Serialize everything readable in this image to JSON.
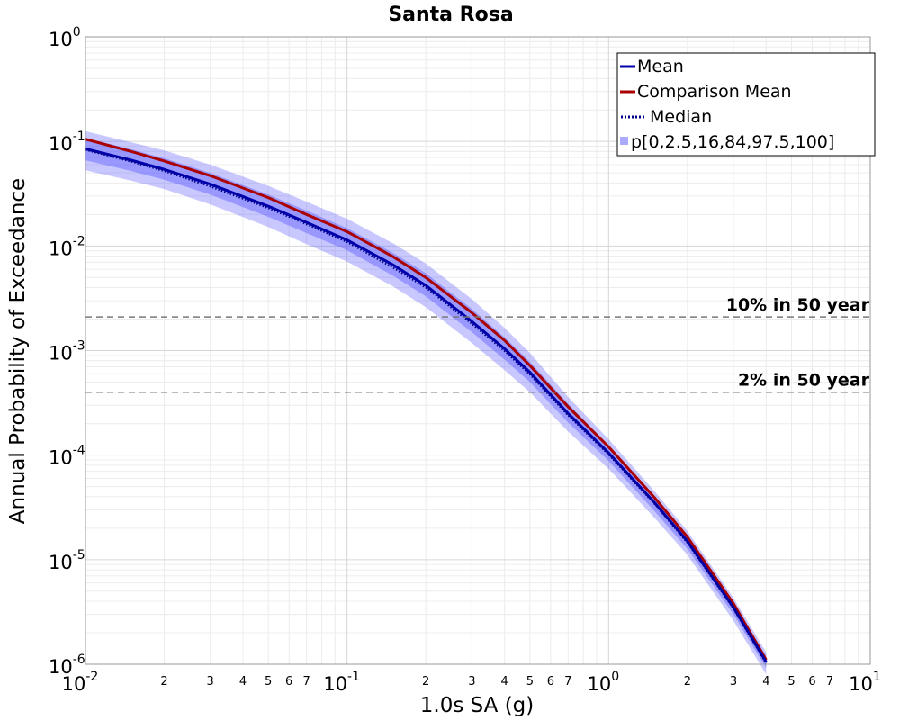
{
  "chart_data": {
    "type": "line",
    "title": "Santa Rosa",
    "xlabel": "1.0s SA (g)",
    "ylabel": "Annual Probability of Exceedance",
    "x_scale": "log",
    "y_scale": "log",
    "xlim": [
      0.01,
      10
    ],
    "ylim": [
      1e-06,
      1
    ],
    "grid": true,
    "legend_position": "top-right",
    "x_major_ticks": [
      {
        "value": 0.01,
        "base": "10",
        "exp": "-2"
      },
      {
        "value": 0.1,
        "base": "10",
        "exp": "-1"
      },
      {
        "value": 1,
        "base": "10",
        "exp": "0"
      },
      {
        "value": 10,
        "base": "10",
        "exp": "1"
      }
    ],
    "y_major_ticks": [
      {
        "value": 1,
        "base": "10",
        "exp": "0"
      },
      {
        "value": 0.1,
        "base": "10",
        "exp": "-1"
      },
      {
        "value": 0.01,
        "base": "10",
        "exp": "-2"
      },
      {
        "value": 0.001,
        "base": "10",
        "exp": "-3"
      },
      {
        "value": 0.0001,
        "base": "10",
        "exp": "-4"
      },
      {
        "value": 1e-05,
        "base": "10",
        "exp": "-5"
      },
      {
        "value": 1e-06,
        "base": "10",
        "exp": "-6"
      }
    ],
    "x_minor_labels": [
      "2",
      "3",
      "4",
      "5",
      "6",
      "7"
    ],
    "x": [
      0.01,
      0.015,
      0.02,
      0.03,
      0.05,
      0.07,
      0.1,
      0.15,
      0.2,
      0.3,
      0.4,
      0.5,
      0.7,
      1.0,
      1.5,
      2.0,
      3.0,
      4.0
    ],
    "series": [
      {
        "name": "Mean",
        "color": "#0000aa",
        "style": "solid",
        "values": [
          0.085,
          0.066,
          0.054,
          0.039,
          0.024,
          0.0168,
          0.0114,
          0.0066,
          0.0042,
          0.0019,
          0.00104,
          0.00062,
          0.00025,
          0.000105,
          3.5e-05,
          1.5e-05,
          3.5e-06,
          1.05e-06
        ]
      },
      {
        "name": "Comparison Mean",
        "color": "#aa0000",
        "style": "solid",
        "values": [
          0.105,
          0.08,
          0.065,
          0.047,
          0.029,
          0.02,
          0.0137,
          0.0079,
          0.005,
          0.0023,
          0.00125,
          0.00072,
          0.00029,
          0.00012,
          3.9e-05,
          1.65e-05,
          3.8e-06,
          1.1e-06
        ]
      },
      {
        "name": "Median",
        "color": "#000088",
        "style": "dotted",
        "values": [
          0.083,
          0.064,
          0.052,
          0.037,
          0.023,
          0.0161,
          0.0109,
          0.0062,
          0.004,
          0.0018,
          0.00099,
          0.00059,
          0.00024,
          0.000101,
          3.4e-05,
          1.45e-05,
          3.4e-06,
          1.02e-06
        ]
      }
    ],
    "percentile_bands": {
      "name": "p[0,2.5,16,84,97.5,100]",
      "color": "#5555ff",
      "outer": {
        "lower": [
          0.053,
          0.042,
          0.035,
          0.025,
          0.0152,
          0.0104,
          0.0071,
          0.0041,
          0.0026,
          0.00118,
          0.00065,
          0.0004,
          0.000168,
          7.4e-05,
          2.5e-05,
          1.11e-05,
          2.6e-06,
          8e-07
        ],
        "upper": [
          0.125,
          0.098,
          0.082,
          0.06,
          0.0375,
          0.0265,
          0.0182,
          0.0106,
          0.0068,
          0.0031,
          0.00165,
          0.00095,
          0.00036,
          0.000142,
          4.5e-05,
          1.88e-05,
          4.3e-06,
          1.3e-06
        ]
      },
      "inner": {
        "lower": [
          0.066,
          0.052,
          0.043,
          0.031,
          0.019,
          0.0133,
          0.0091,
          0.0052,
          0.0033,
          0.0015,
          0.00082,
          0.0005,
          0.000205,
          8.8e-05,
          2.9e-05,
          1.27e-05,
          3e-06,
          9.2e-07
        ],
        "upper": [
          0.108,
          0.084,
          0.069,
          0.05,
          0.031,
          0.0218,
          0.0148,
          0.0086,
          0.0055,
          0.0025,
          0.00134,
          0.00078,
          0.00031,
          0.000124,
          4e-05,
          1.68e-05,
          3.9e-06,
          1.2e-06
        ]
      }
    },
    "reference_lines": [
      {
        "label": "10% in 50 year",
        "y": 0.0021
      },
      {
        "label": "2% in 50 year",
        "y": 0.0004
      }
    ]
  }
}
